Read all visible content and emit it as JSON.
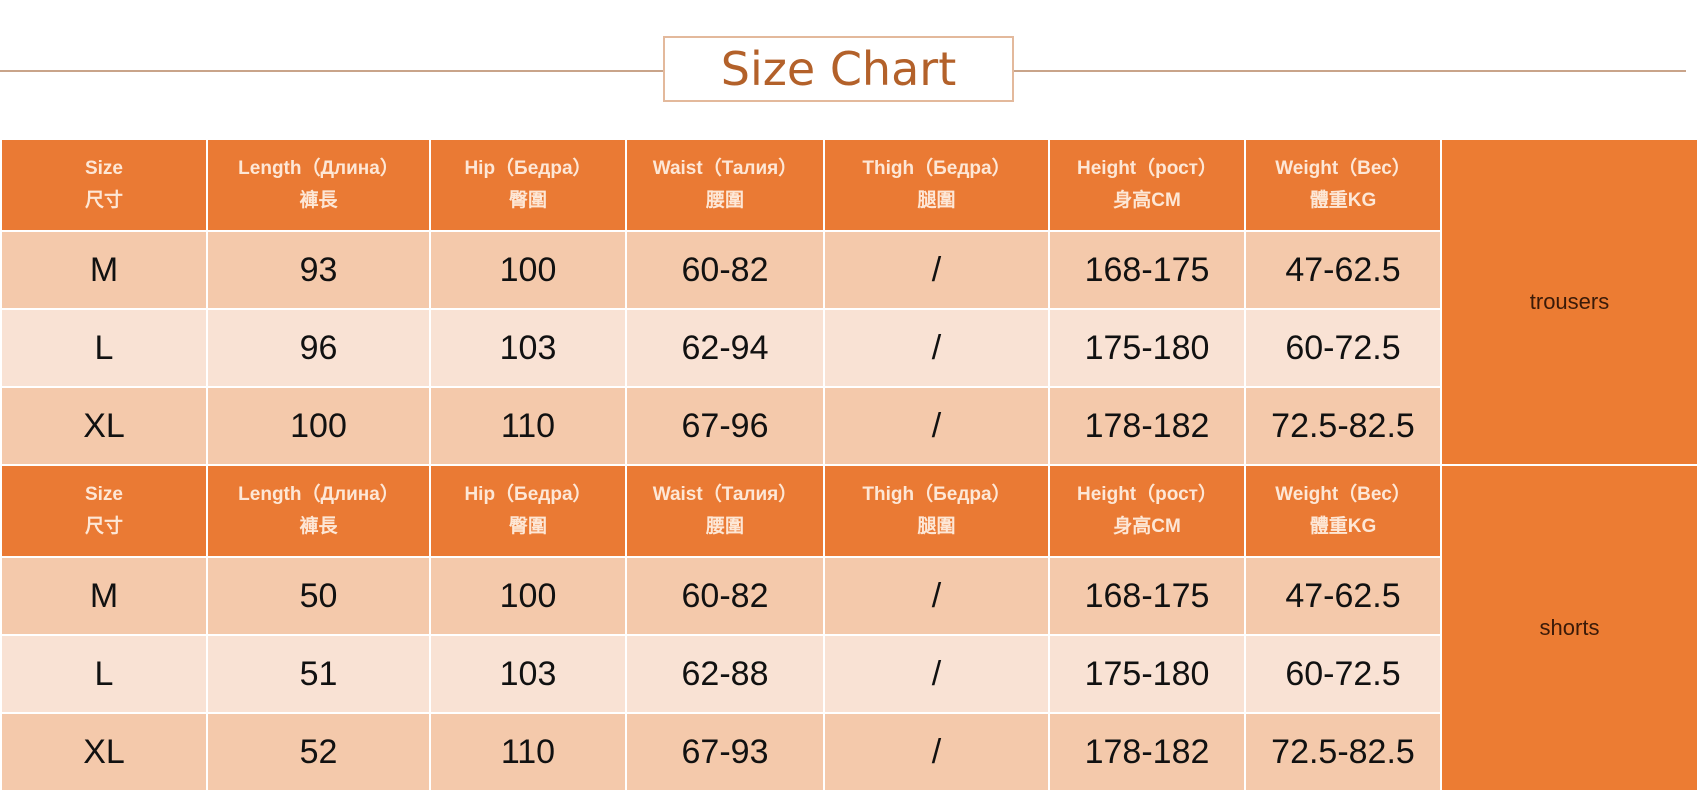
{
  "title": "Size Chart",
  "headers": [
    {
      "en": "Size",
      "cn": "尺寸"
    },
    {
      "en": "Length（Длина）",
      "cn": "褲長"
    },
    {
      "en": "Hip（Бедра）",
      "cn": "臀圍"
    },
    {
      "en": "Waist（Талия）",
      "cn": "腰圍"
    },
    {
      "en": "Thigh（Бедра）",
      "cn": "腿圍"
    },
    {
      "en": "Height（рост）",
      "cn": "身高CM"
    },
    {
      "en": "Weight（Вес）",
      "cn": "體重KG"
    }
  ],
  "sections": [
    {
      "label": "trousers",
      "rows": [
        [
          "M",
          "93",
          "100",
          "60-82",
          "/",
          "168-175",
          "47-62.5"
        ],
        [
          "L",
          "96",
          "103",
          "62-94",
          "/",
          "175-180",
          "60-72.5"
        ],
        [
          "XL",
          "100",
          "110",
          "67-96",
          "/",
          "178-182",
          "72.5-82.5"
        ]
      ]
    },
    {
      "label": "shorts",
      "rows": [
        [
          "M",
          "50",
          "100",
          "60-82",
          "/",
          "168-175",
          "47-62.5"
        ],
        [
          "L",
          "51",
          "103",
          "62-88",
          "/",
          "175-180",
          "60-72.5"
        ],
        [
          "XL",
          "52",
          "110",
          "67-93",
          "/",
          "178-182",
          "72.5-82.5"
        ]
      ]
    }
  ],
  "colors": {
    "header": "#ea7a34",
    "row_dark": "#f4c9ab",
    "row_light": "#f9e2d4",
    "title_text": "#b3612a"
  }
}
